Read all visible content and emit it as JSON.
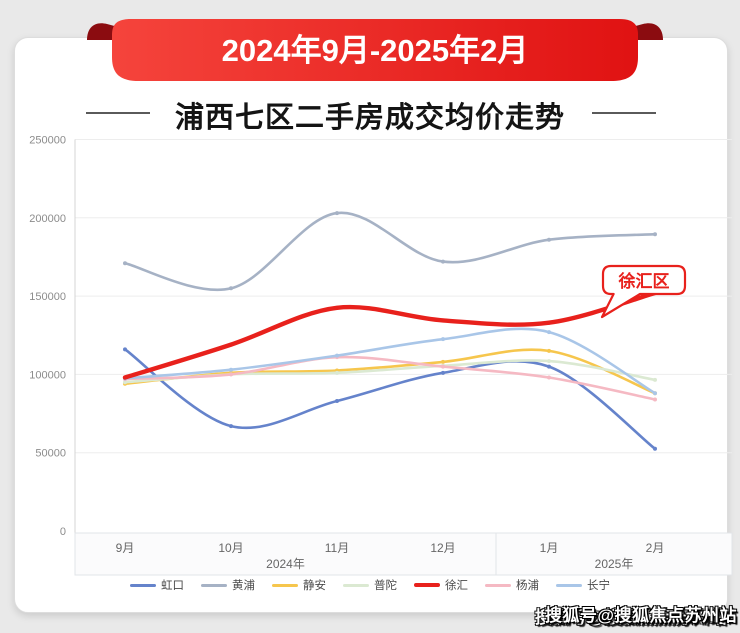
{
  "banner": {
    "label": "2024年9月-2025年2月"
  },
  "title": "浦西七区二手房成交均价走势",
  "watermark": {
    "text": "搜狐号@搜狐焦点苏州站"
  },
  "colors": {
    "ribbon_red_light": "#f5443c",
    "ribbon_red_dark": "#e01212",
    "ribbon_fold": "#8b0c10",
    "accent_red": "#e8211c",
    "page_bg": "#e9e9e9",
    "card_bg": "#ffffff"
  },
  "chart_data": {
    "type": "line",
    "title": "浦西七区二手房成交均价走势",
    "smooth": true,
    "grid": true,
    "legend_position": "bottom",
    "ylim": [
      0,
      250000
    ],
    "yticks": [
      "0",
      "50000",
      "100000",
      "150000",
      "200000",
      "250000"
    ],
    "categories": [
      "9月",
      "10月",
      "11月",
      "12月",
      "1月",
      "2月"
    ],
    "x_groups": [
      {
        "label": "2024年"
      },
      {
        "label": "2025年"
      }
    ],
    "annotation": {
      "label": "徐汇区",
      "series": "徐汇"
    },
    "series": [
      {
        "name": "虹口",
        "color": "#6583cb",
        "width": 2.6,
        "values": [
          116000,
          67000,
          83000,
          101000,
          105000,
          52500
        ]
      },
      {
        "name": "黄浦",
        "color": "#a6b2c5",
        "width": 2.6,
        "values": [
          171000,
          155000,
          203000,
          172000,
          186000,
          189500
        ]
      },
      {
        "name": "静安",
        "color": "#f6c64d",
        "width": 2.6,
        "values": [
          94000,
          101000,
          102500,
          108000,
          115000,
          88000
        ]
      },
      {
        "name": "普陀",
        "color": "#dbe9d2",
        "width": 2.6,
        "values": [
          95000,
          100000,
          101000,
          105500,
          108500,
          96500
        ]
      },
      {
        "name": "徐汇",
        "color": "#e8211c",
        "width": 4.4,
        "emphasis": true,
        "values": [
          98000,
          119000,
          142500,
          134500,
          133000,
          152000
        ]
      },
      {
        "name": "杨浦",
        "color": "#f5b9c3",
        "width": 2.6,
        "values": [
          97000,
          100000,
          111000,
          105000,
          98000,
          84000
        ]
      },
      {
        "name": "长宁",
        "color": "#a9c6e8",
        "width": 2.6,
        "values": [
          97500,
          103000,
          112000,
          122500,
          127000,
          88000
        ]
      }
    ]
  }
}
